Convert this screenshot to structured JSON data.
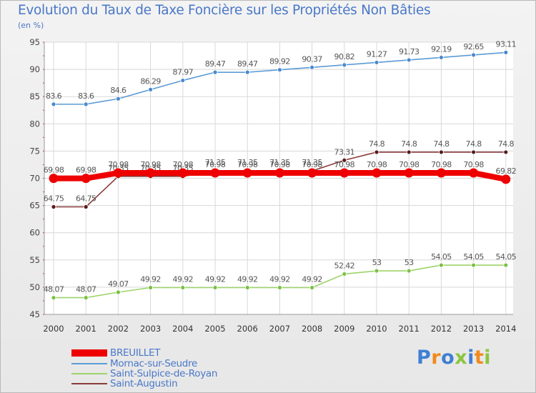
{
  "title": "Evolution du Taux de Taxe Foncière sur les Propriétés Non Bâties",
  "unit_label": "(en %)",
  "logo": {
    "text": "Proxiti",
    "colors": [
      "#3f7fd4",
      "#f08a1c",
      "#3f7fd4",
      "#8bc53f",
      "#3f7fd4",
      "#f08a1c",
      "#8bc53f"
    ]
  },
  "chart_data": {
    "type": "line",
    "x": [
      "2000",
      "2001",
      "2002",
      "2003",
      "2004",
      "2005",
      "2006",
      "2007",
      "2008",
      "2009",
      "2010",
      "2011",
      "2012",
      "2013",
      "2014"
    ],
    "ylim": [
      45,
      95
    ],
    "yticks": [
      45,
      50,
      55,
      60,
      65,
      70,
      75,
      80,
      85,
      90,
      95
    ],
    "grid": true,
    "legend_position": "bottom-left",
    "series": [
      {
        "name": "Mornac-sur-Seudre",
        "color": "#5b9bd5",
        "dot_color": "#4a8ad0",
        "values": [
          83.6,
          83.6,
          84.6,
          86.29,
          87.97,
          89.47,
          89.47,
          89.92,
          90.37,
          90.82,
          91.27,
          91.73,
          92.19,
          92.65,
          93.11
        ],
        "labels": [
          "83.6",
          "83.6",
          "84.6",
          "86.29",
          "87.97",
          "89.47",
          "89.47",
          "89.92",
          "90.37",
          "90.82",
          "91.27",
          "91.73",
          "92.19",
          "92.65",
          "93.11"
        ]
      },
      {
        "name": "Saint-Sulpice-de-Royan",
        "color": "#9ed36a",
        "dot_color": "#7ac142",
        "values": [
          48.07,
          48.07,
          49.07,
          49.92,
          49.92,
          49.92,
          49.92,
          49.92,
          49.92,
          52.42,
          53,
          53,
          54.05,
          54.05,
          54.05
        ],
        "labels": [
          "48.07",
          "48.07",
          "49.07",
          "49.92",
          "49.92",
          "49.92",
          "49.92",
          "49.92",
          "49.92",
          "52.42",
          "53",
          "53",
          "54.05",
          "54.05",
          "54.05"
        ]
      },
      {
        "name": "Saint-Augustin",
        "color": "#8b3a3a",
        "dot_color": "#5a1a1a",
        "values": [
          64.75,
          64.75,
          70.35,
          70.35,
          70.35,
          71.35,
          71.35,
          71.35,
          71.35,
          73.31,
          74.8,
          74.8,
          74.8,
          74.8,
          74.8
        ],
        "labels": [
          "64.75",
          "64.75",
          "70.35",
          "70.35",
          "70.35",
          "71.35",
          "71.35",
          "71.35",
          "71.35",
          "73.31",
          "74.8",
          "74.8",
          "74.8",
          "74.8",
          "74.8"
        ]
      },
      {
        "name": "BREUILLET",
        "color": "#ee0000",
        "dot_color": "#ee0000",
        "thick": true,
        "values": [
          69.98,
          69.98,
          70.98,
          70.98,
          70.98,
          70.98,
          70.98,
          70.98,
          70.98,
          70.98,
          70.98,
          70.98,
          70.98,
          70.98,
          69.82
        ],
        "labels": [
          "69.98",
          "69.98",
          "70.98",
          "70.98",
          "70.98",
          "70.98",
          "70.98",
          "70.98",
          "70.98",
          "70.98",
          "70.98",
          "70.98",
          "70.98",
          "70.98",
          "69.82"
        ]
      }
    ],
    "legend_order": [
      "BREUILLET",
      "Mornac-sur-Seudre",
      "Saint-Sulpice-de-Royan",
      "Saint-Augustin"
    ]
  }
}
